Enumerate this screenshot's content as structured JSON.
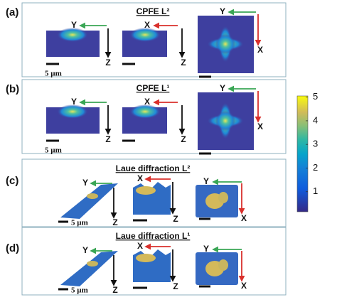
{
  "panels": [
    {
      "label": "(a)",
      "title": "CPFE L²",
      "axes": [
        "Y",
        "Z",
        "X",
        "Z",
        "Y",
        "X"
      ],
      "scale": "5 µm"
    },
    {
      "label": "(b)",
      "title": "CPFE L¹",
      "axes": [
        "Y",
        "Z",
        "X",
        "Z",
        "Y",
        "X"
      ],
      "scale": "5 µm"
    },
    {
      "label": "(c)",
      "title": "Laue diffraction L²",
      "axes": [
        "Y",
        "Z",
        "X",
        "Z",
        "Y",
        "X"
      ],
      "scale": "5 µm"
    },
    {
      "label": "(d)",
      "title": "Laue diffraction L¹",
      "axes": [
        "Y",
        "Z",
        "X",
        "Z",
        "Y",
        "X"
      ],
      "scale": "5 µm"
    }
  ],
  "colorbar": {
    "ticks": [
      1,
      2,
      3,
      4,
      5
    ],
    "range": [
      0.15,
      5.05
    ]
  }
}
